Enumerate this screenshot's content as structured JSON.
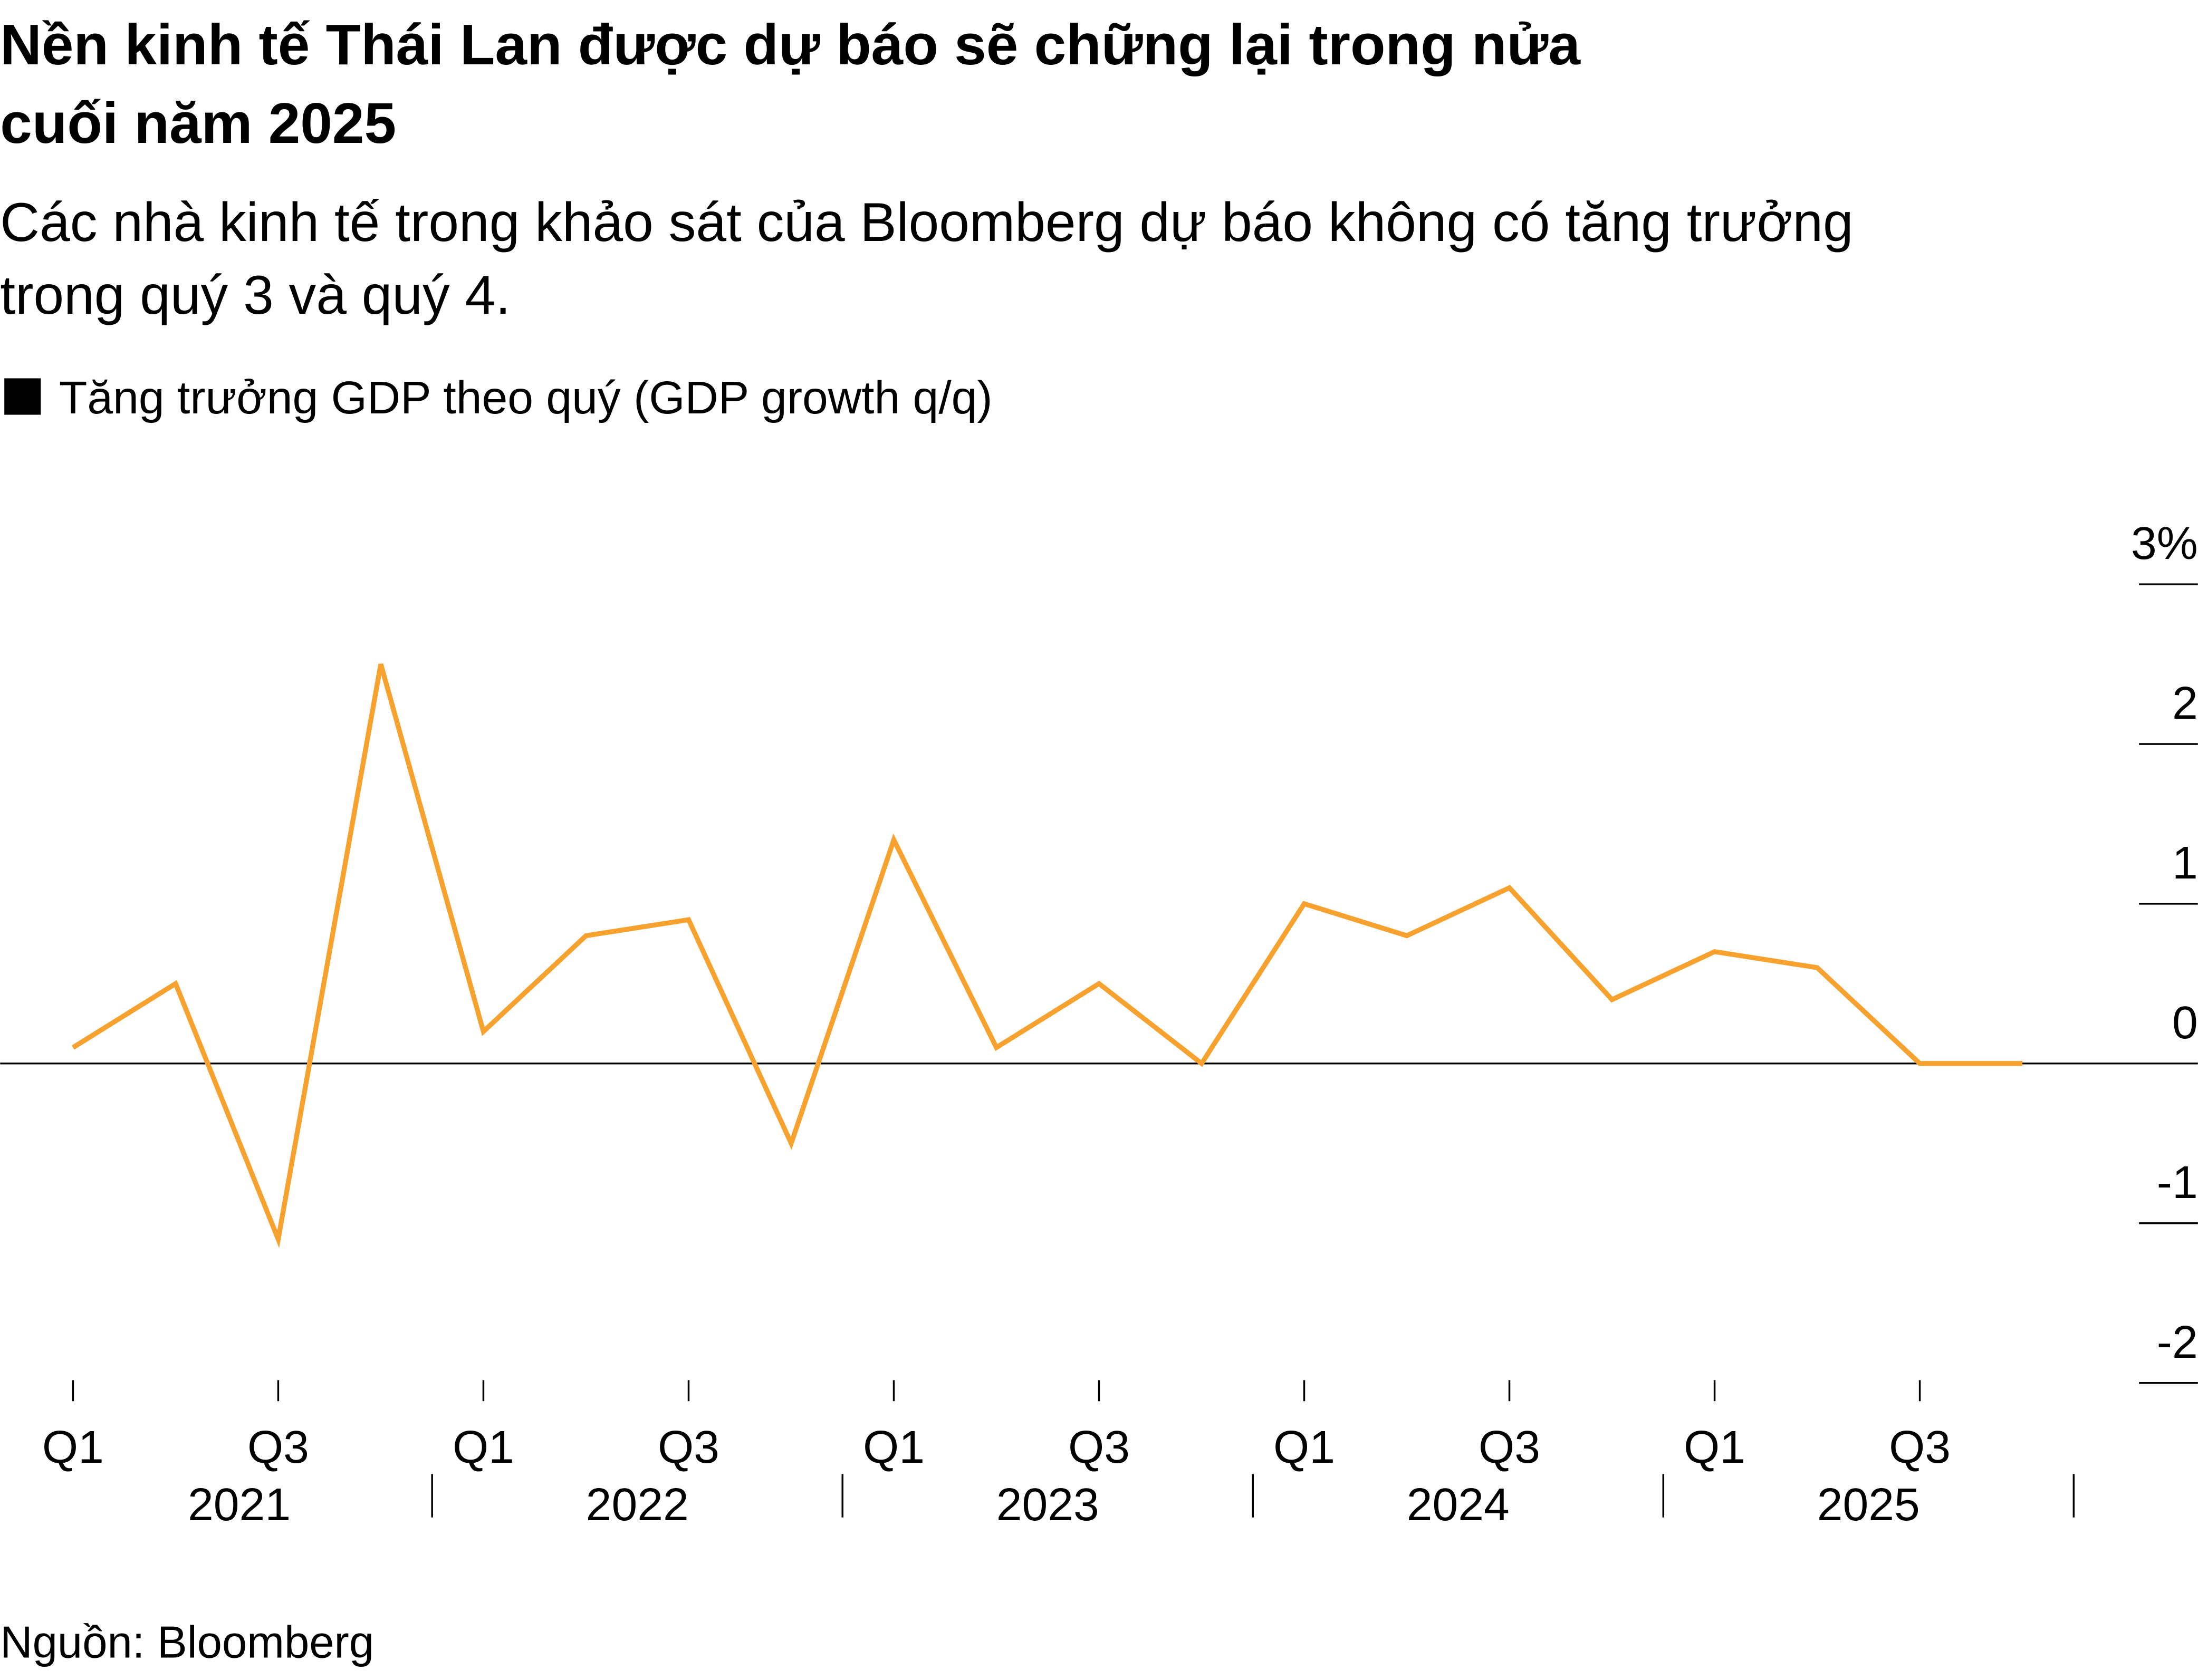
{
  "title_lines": [
    "Nền kinh tế Thái Lan được dự báo sẽ chững lại trong nửa",
    "cuối năm 2025"
  ],
  "subtitle_lines": [
    "Các nhà kinh tế trong khảo sát của Bloomberg dự báo không có tăng trưởng",
    "trong quý 3 và quý 4."
  ],
  "source": "Nguồn: Bloomberg",
  "chart_data": {
    "type": "line",
    "title": "Nền kinh tế Thái Lan được dự báo sẽ chững lại trong nửa cuối năm 2025",
    "legend": "Tăng trưởng GDP theo quý (GDP growth q/q)",
    "legend_position": "top-left",
    "color": "#f7a22f",
    "x": [
      "Q1 2021",
      "Q2 2021",
      "Q3 2021",
      "Q4 2021",
      "Q1 2022",
      "Q2 2022",
      "Q3 2022",
      "Q4 2022",
      "Q1 2023",
      "Q2 2023",
      "Q3 2023",
      "Q4 2023",
      "Q1 2024",
      "Q2 2024",
      "Q3 2024",
      "Q4 2024",
      "Q1 2025",
      "Q2 2025",
      "Q3 2025",
      "Q4 2025"
    ],
    "series": [
      {
        "name": "Tăng trưởng GDP theo quý (GDP growth q/q)",
        "values": [
          0.1,
          0.5,
          -1.1,
          2.5,
          0.2,
          0.8,
          0.9,
          -0.5,
          1.4,
          0.1,
          0.5,
          0.0,
          1.0,
          0.8,
          1.1,
          0.4,
          0.7,
          0.6,
          0.0,
          0.0
        ]
      }
    ],
    "ylim": [
      -2,
      3
    ],
    "y_ticks": [
      "3%",
      "2",
      "1",
      "0",
      "-1",
      "-2"
    ],
    "y_tick_values": [
      3,
      2,
      1,
      0,
      -1,
      -2
    ],
    "x_quarter_labels": [
      "Q1",
      "Q3",
      "Q1",
      "Q3",
      "Q1",
      "Q3",
      "Q1",
      "Q3",
      "Q1",
      "Q3"
    ],
    "x_year_labels": [
      "2021",
      "2022",
      "2023",
      "2024",
      "2025"
    ],
    "grid": true
  }
}
